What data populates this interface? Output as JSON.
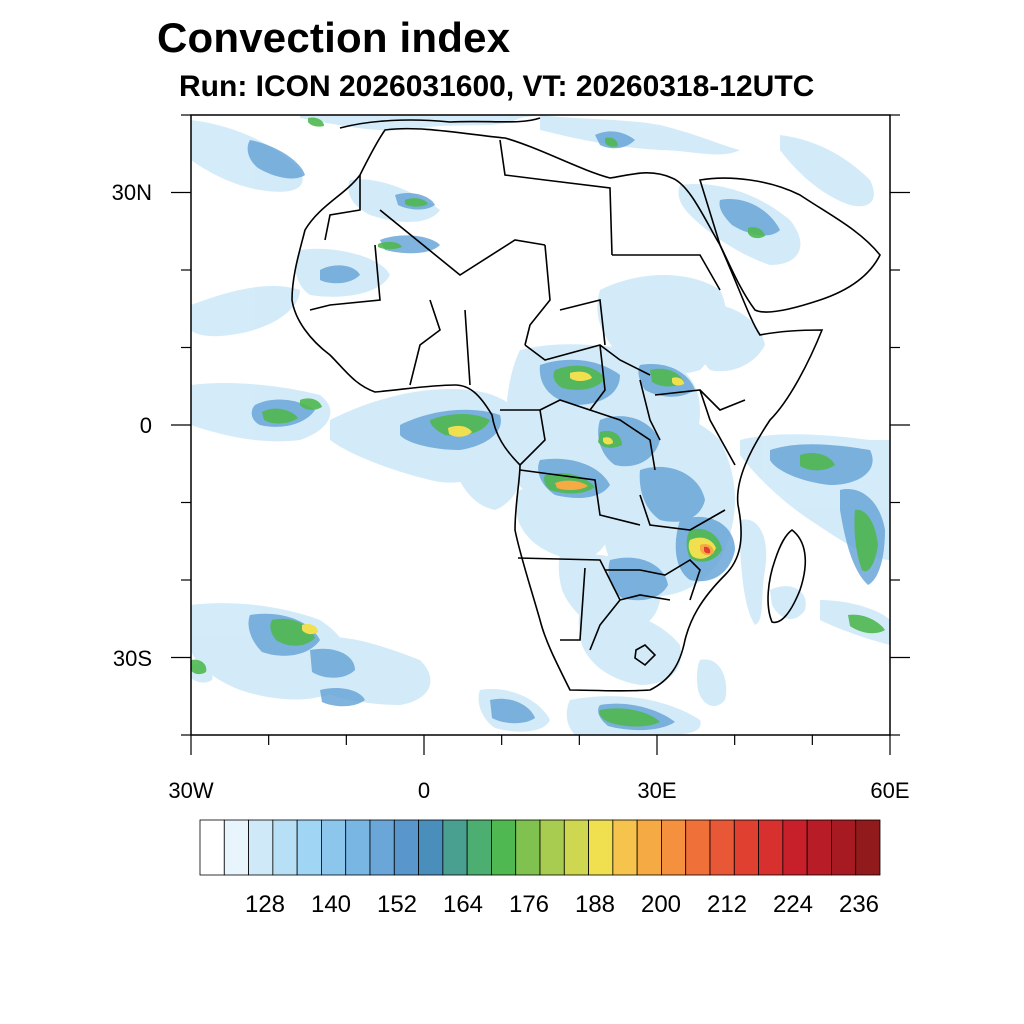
{
  "title": "Convection index",
  "subtitle": "Run: ICON 2026031600,  VT: 20260318-12UTC",
  "map": {
    "lon_range": [
      -30,
      60
    ],
    "lat_range": [
      -40,
      40
    ],
    "x_tick_labels": [
      {
        "lon": -30,
        "label": "30W"
      },
      {
        "lon": 0,
        "label": "0"
      },
      {
        "lon": 30,
        "label": "30E"
      },
      {
        "lon": 60,
        "label": "60E"
      }
    ],
    "y_tick_labels": [
      {
        "lat": 30,
        "label": "30N"
      },
      {
        "lat": 0,
        "label": "0"
      },
      {
        "lat": -30,
        "label": "30S"
      }
    ]
  },
  "colorbar": {
    "labels": [
      "128",
      "140",
      "152",
      "164",
      "176",
      "188",
      "200",
      "212",
      "224",
      "236"
    ],
    "colors": [
      "#ffffff",
      "#e8f5fc",
      "#cfe9f8",
      "#b7e0f6",
      "#a0d6f4",
      "#8cc6ec",
      "#7ab6e4",
      "#6aa6d8",
      "#5896cc",
      "#4a8ebc",
      "#4aa090",
      "#4cae70",
      "#50b850",
      "#80c250",
      "#a8cc50",
      "#cfd650",
      "#f0e050",
      "#f6c44c",
      "#f6aa44",
      "#f4903e",
      "#f0703a",
      "#e85836",
      "#e04030",
      "#d8302e",
      "#c8202a",
      "#b81c26",
      "#a81a22",
      "#901a1c"
    ]
  },
  "colors": {
    "boundary": "#000000",
    "frame": "#000000"
  }
}
